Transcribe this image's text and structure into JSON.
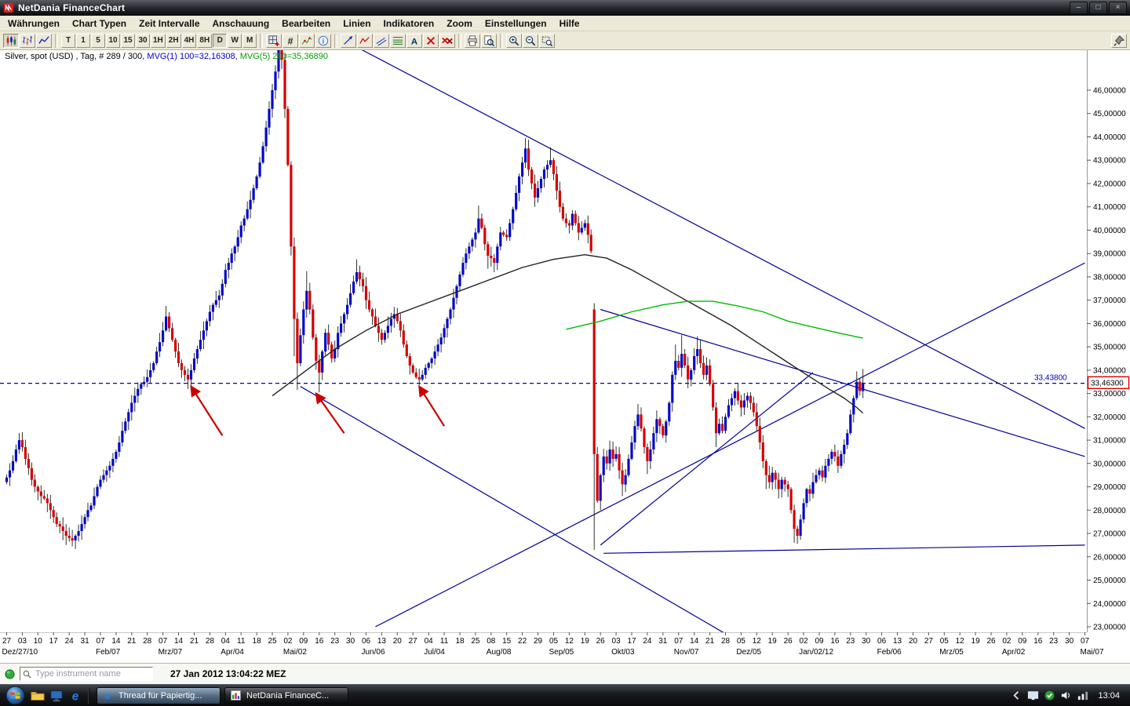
{
  "window": {
    "title": "NetDania FinanceChart",
    "buttons": [
      {
        "name": "minimize-button",
        "glyph": "–"
      },
      {
        "name": "maximize-button",
        "glyph": "□"
      },
      {
        "name": "close-button",
        "glyph": "×"
      }
    ]
  },
  "menu": {
    "items": [
      "Währungen",
      "Chart Typen",
      "Zeit Intervalle",
      "Anschauung",
      "Bearbeiten",
      "Linien",
      "Indikatoren",
      "Zoom",
      "Einstellungen",
      "Hilfe"
    ]
  },
  "toolbar": {
    "items": [
      {
        "type": "icon",
        "name": "candlestick-chart-icon",
        "active": true
      },
      {
        "type": "icon",
        "name": "ohlc-chart-icon"
      },
      {
        "type": "icon",
        "name": "line-chart-icon"
      },
      {
        "type": "sep"
      },
      {
        "type": "button",
        "label": "T"
      },
      {
        "type": "button",
        "label": "1"
      },
      {
        "type": "button",
        "label": "5"
      },
      {
        "type": "button",
        "label": "10"
      },
      {
        "type": "button",
        "label": "15"
      },
      {
        "type": "button",
        "label": "30"
      },
      {
        "type": "button",
        "label": "1H"
      },
      {
        "type": "button",
        "label": "2H"
      },
      {
        "type": "button",
        "label": "4H"
      },
      {
        "type": "button",
        "label": "8H"
      },
      {
        "type": "button",
        "label": "D",
        "active": true
      },
      {
        "type": "button",
        "label": "W"
      },
      {
        "type": "button",
        "label": "M"
      },
      {
        "type": "sep"
      },
      {
        "type": "icon",
        "name": "grid-icon"
      },
      {
        "type": "icon",
        "name": "hash-icon"
      },
      {
        "type": "icon",
        "name": "indicator-icon"
      },
      {
        "type": "icon",
        "name": "info-icon"
      },
      {
        "type": "sep"
      },
      {
        "type": "icon",
        "name": "trendline-icon"
      },
      {
        "type": "icon",
        "name": "polyline-icon"
      },
      {
        "type": "icon",
        "name": "channel-icon"
      },
      {
        "type": "icon",
        "name": "fibonacci-icon"
      },
      {
        "type": "icon",
        "name": "text-note-icon"
      },
      {
        "type": "icon",
        "name": "delete-line-icon"
      },
      {
        "type": "icon",
        "name": "delete-all-icon"
      },
      {
        "type": "sep"
      },
      {
        "type": "icon",
        "name": "print-icon"
      },
      {
        "type": "icon",
        "name": "print-preview-icon"
      },
      {
        "type": "sep"
      },
      {
        "type": "icon",
        "name": "zoom-in-icon"
      },
      {
        "type": "icon",
        "name": "zoom-out-icon"
      },
      {
        "type": "icon",
        "name": "zoom-selection-icon"
      }
    ],
    "pin": "pin-icon"
  },
  "status_line": {
    "instrument": "Silver, spot (USD) , Tag, # 289 / 300,",
    "mvg1": " MVG(1) 100=32,16308,",
    "mvg5": " MVG(5) 200=35,36890"
  },
  "chart_data": {
    "type": "candlestick",
    "title": "Silver, spot (USD)",
    "interval": "Tag",
    "bars_info": "# 289 / 300",
    "up_color": "#0008c8",
    "down_color": "#d80000",
    "trend_color": "#000099",
    "arrow_color": "#cc0000",
    "y_axis": {
      "min": 23,
      "max": 46,
      "tick_step": 1,
      "side": "right",
      "tick_labels": [
        "46,00000",
        "45,00000",
        "44,00000",
        "43,00000",
        "42,00000",
        "41,00000",
        "40,00000",
        "39,00000",
        "38,00000",
        "37,00000",
        "36,00000",
        "35,00000",
        "34,00000",
        "33,00000",
        "32,00000",
        "31,00000",
        "30,00000",
        "29,00000",
        "28,00000",
        "27,00000",
        "26,00000",
        "25,00000",
        "24,00000",
        "23,00000"
      ]
    },
    "x_ticks": [
      [
        "27",
        "Dez/27/10"
      ],
      [
        "03",
        ""
      ],
      [
        "10",
        ""
      ],
      [
        "17",
        ""
      ],
      [
        "24",
        ""
      ],
      [
        "31",
        ""
      ],
      [
        "07",
        "Feb/07"
      ],
      [
        "14",
        ""
      ],
      [
        "21",
        ""
      ],
      [
        "28",
        ""
      ],
      [
        "07",
        "Mrz/07"
      ],
      [
        "14",
        ""
      ],
      [
        "21",
        ""
      ],
      [
        "28",
        ""
      ],
      [
        "04",
        "Apr/04"
      ],
      [
        "11",
        ""
      ],
      [
        "18",
        ""
      ],
      [
        "25",
        ""
      ],
      [
        "02",
        "Mai/02"
      ],
      [
        "09",
        ""
      ],
      [
        "16",
        ""
      ],
      [
        "23",
        ""
      ],
      [
        "30",
        ""
      ],
      [
        "06",
        "Jun/06"
      ],
      [
        "13",
        ""
      ],
      [
        "20",
        ""
      ],
      [
        "27",
        ""
      ],
      [
        "04",
        "Jul/04"
      ],
      [
        "11",
        ""
      ],
      [
        "18",
        ""
      ],
      [
        "25",
        ""
      ],
      [
        "08",
        "Aug/08"
      ],
      [
        "15",
        ""
      ],
      [
        "22",
        ""
      ],
      [
        "29",
        ""
      ],
      [
        "05",
        "Sep/05"
      ],
      [
        "12",
        ""
      ],
      [
        "19",
        ""
      ],
      [
        "26",
        ""
      ],
      [
        "03",
        "Okt/03"
      ],
      [
        "17",
        ""
      ],
      [
        "24",
        ""
      ],
      [
        "31",
        ""
      ],
      [
        "07",
        "Nov/07"
      ],
      [
        "14",
        ""
      ],
      [
        "21",
        ""
      ],
      [
        "28",
        ""
      ],
      [
        "05",
        "Dez/05"
      ],
      [
        "12",
        ""
      ],
      [
        "19",
        ""
      ],
      [
        "26",
        ""
      ],
      [
        "02",
        "Jan/02/12"
      ],
      [
        "09",
        ""
      ],
      [
        "16",
        ""
      ],
      [
        "23",
        ""
      ],
      [
        "30",
        ""
      ],
      [
        "06",
        "Feb/06"
      ],
      [
        "13",
        ""
      ],
      [
        "20",
        ""
      ],
      [
        "27",
        ""
      ],
      [
        "05",
        "Mrz/05"
      ],
      [
        "12",
        ""
      ],
      [
        "19",
        ""
      ],
      [
        "26",
        ""
      ],
      [
        "02",
        "Apr/02"
      ],
      [
        "09",
        ""
      ],
      [
        "16",
        ""
      ],
      [
        "23",
        ""
      ],
      [
        "30",
        ""
      ],
      [
        "07",
        "Mai/07"
      ]
    ],
    "days_total": 345,
    "first_open": 29.2,
    "closes": [
      29.4,
      29.7,
      30.1,
      30.6,
      31.0,
      30.7,
      30.2,
      29.8,
      29.3,
      29.0,
      28.8,
      28.6,
      28.5,
      28.3,
      28.0,
      27.7,
      27.4,
      27.3,
      27.1,
      26.9,
      26.8,
      26.7,
      26.9,
      27.1,
      27.4,
      27.7,
      28.0,
      28.2,
      28.6,
      29.0,
      29.3,
      29.5,
      29.7,
      29.9,
      30.2,
      30.5,
      30.9,
      31.4,
      31.8,
      32.2,
      32.6,
      32.9,
      33.2,
      33.4,
      33.5,
      33.7,
      34.0,
      34.3,
      34.8,
      35.2,
      35.7,
      36.3,
      35.8,
      35.3,
      34.8,
      34.3,
      34.0,
      33.8,
      33.6,
      34.0,
      34.5,
      34.9,
      35.3,
      35.7,
      36.1,
      36.5,
      36.8,
      37.0,
      37.2,
      37.7,
      38.3,
      38.6,
      39.0,
      39.3,
      39.7,
      40.2,
      40.5,
      40.9,
      41.3,
      41.8,
      42.3,
      42.9,
      43.6,
      44.4,
      45.2,
      46.0,
      46.8,
      48.2,
      47.3,
      45.2,
      42.8,
      39.3,
      36.2,
      34.3,
      35.5,
      36.6,
      37.4,
      36.6,
      35.4,
      34.4,
      33.9,
      34.8,
      35.6,
      35.1,
      34.5,
      34.9,
      35.6,
      36.0,
      36.4,
      36.8,
      37.3,
      37.8,
      38.2,
      37.9,
      37.6,
      37.0,
      36.6,
      36.3,
      35.9,
      35.6,
      35.3,
      35.6,
      35.9,
      36.2,
      36.4,
      36.1,
      35.7,
      35.1,
      34.6,
      34.2,
      33.9,
      33.7,
      33.6,
      33.8,
      34.1,
      34.3,
      34.5,
      34.8,
      35.1,
      35.4,
      35.8,
      36.2,
      36.6,
      37.1,
      37.6,
      38.1,
      38.6,
      39.0,
      39.3,
      39.6,
      39.9,
      40.5,
      40.1,
      39.4,
      38.9,
      38.8,
      38.6,
      39.3,
      39.9,
      39.8,
      39.7,
      40.3,
      40.9,
      41.6,
      42.3,
      42.9,
      43.5,
      42.6,
      42.0,
      41.4,
      41.8,
      42.2,
      42.6,
      42.8,
      43.0,
      42.4,
      41.7,
      41.0,
      40.5,
      40.3,
      40.2,
      40.7,
      40.3,
      39.9,
      40.1,
      40.3,
      39.8,
      39.1,
      30.4,
      28.4,
      29.5,
      30.3,
      30.0,
      30.6,
      30.2,
      30.4,
      29.7,
      29.1,
      29.5,
      30.2,
      30.9,
      31.6,
      32.1,
      31.5,
      30.7,
      30.1,
      30.6,
      31.3,
      31.9,
      31.6,
      31.2,
      31.8,
      32.6,
      33.8,
      34.4,
      34.1,
      34.7,
      34.2,
      33.6,
      34.0,
      34.6,
      34.9,
      34.3,
      33.8,
      34.2,
      33.4,
      32.4,
      31.3,
      31.7,
      31.4,
      32.0,
      32.5,
      32.8,
      33.1,
      32.7,
      32.4,
      32.7,
      32.9,
      32.6,
      32.2,
      31.6,
      30.9,
      30.1,
      29.5,
      29.2,
      29.6,
      29.3,
      28.9,
      29.3,
      29.1,
      28.9,
      28.0,
      27.2,
      26.9,
      27.6,
      28.3,
      28.9,
      28.7,
      29.2,
      29.5,
      29.7,
      29.4,
      29.9,
      30.2,
      30.5,
      30.3,
      29.9,
      30.4,
      30.8,
      31.3,
      32.1,
      32.8,
      33.5,
      33.1,
      33.46
    ],
    "overrides": {
      "4": {
        "high": 31.3
      },
      "21": {
        "low": 26.45
      },
      "51": {
        "high": 36.75
      },
      "58": {
        "low": 33.2
      },
      "87": {
        "high": 49.3
      },
      "88": {
        "high": 48.9
      },
      "92": {
        "low": 34.6
      },
      "93": {
        "low": 33.15
      },
      "96": {
        "high": 38.25
      },
      "100": {
        "low": 33.05
      },
      "112": {
        "high": 38.75
      },
      "132": {
        "low": 33.35
      },
      "151": {
        "high": 41.05
      },
      "154": {
        "low": 38.35
      },
      "166": {
        "high": 43.95
      },
      "174": {
        "high": 43.55
      },
      "188": {
        "open": 36.6,
        "low": 26.3
      },
      "197": {
        "low": 28.6
      },
      "202": {
        "high": 32.55
      },
      "205": {
        "low": 29.55
      },
      "214": {
        "high": 35.1
      },
      "216": {
        "high": 35.5
      },
      "221": {
        "high": 35.45
      },
      "227": {
        "low": 30.7
      },
      "243": {
        "low": 28.9
      },
      "247": {
        "low": 28.5
      },
      "252": {
        "low": 26.6
      },
      "253": {
        "low": 26.55
      },
      "272": {
        "high": 33.95
      },
      "274": {
        "high": 34.05,
        "low": 32.8
      }
    },
    "ma100": {
      "label": "MVG(1) 100=32,16308",
      "value": "32,16308",
      "color": "#222222",
      "points": [
        [
          85,
          32.9
        ],
        [
          95,
          33.9
        ],
        [
          105,
          34.9
        ],
        [
          115,
          35.7
        ],
        [
          125,
          36.4
        ],
        [
          135,
          36.9
        ],
        [
          145,
          37.4
        ],
        [
          155,
          37.9
        ],
        [
          165,
          38.4
        ],
        [
          175,
          38.75
        ],
        [
          185,
          38.95
        ],
        [
          192,
          38.8
        ],
        [
          200,
          38.3
        ],
        [
          208,
          37.7
        ],
        [
          216,
          37.1
        ],
        [
          224,
          36.5
        ],
        [
          232,
          35.9
        ],
        [
          240,
          35.2
        ],
        [
          248,
          34.5
        ],
        [
          256,
          33.8
        ],
        [
          263,
          33.2
        ],
        [
          268,
          32.8
        ],
        [
          272,
          32.4
        ],
        [
          274,
          32.16
        ]
      ]
    },
    "ma200": {
      "label": "MVG(5) 200=35,36890",
      "value": "35,36890",
      "color": "#00bb00",
      "points": [
        [
          179,
          35.75
        ],
        [
          190,
          36.1
        ],
        [
          200,
          36.5
        ],
        [
          210,
          36.8
        ],
        [
          218,
          36.95
        ],
        [
          226,
          36.95
        ],
        [
          234,
          36.75
        ],
        [
          242,
          36.5
        ],
        [
          250,
          36.1
        ],
        [
          258,
          35.85
        ],
        [
          266,
          35.6
        ],
        [
          274,
          35.37
        ]
      ]
    },
    "trendlines": [
      {
        "p1": [
          87,
          49.6
        ],
        "p2": [
          345,
          31.5
        ]
      },
      {
        "p1": [
          190,
          36.6
        ],
        "p2": [
          345,
          30.3
        ]
      },
      {
        "p1": [
          118,
          23.0
        ],
        "p2": [
          345,
          38.6
        ]
      },
      {
        "p1": [
          94,
          33.3
        ],
        "p2": [
          230,
          22.7
        ]
      },
      {
        "p1": [
          191,
          26.15
        ],
        "p2": [
          345,
          26.5
        ]
      },
      {
        "p1": [
          190,
          26.5
        ],
        "p2": [
          258,
          33.9
        ]
      }
    ],
    "dashed_line": {
      "price": 33.438,
      "label": "33,43800",
      "color": "#0000bb"
    },
    "current_price": {
      "value": 33.463,
      "label": "33,46300",
      "box_border": "#dd0000"
    },
    "arrows": [
      {
        "tail": [
          69,
          31.2
        ],
        "tip": [
          59,
          33.3
        ]
      },
      {
        "tail": [
          108,
          31.3
        ],
        "tip": [
          99,
          33.0
        ]
      },
      {
        "tail": [
          140,
          31.6
        ],
        "tip": [
          132,
          33.3
        ]
      }
    ]
  },
  "bottom_bar": {
    "search_placeholder": "Type instrument name",
    "timestamp": "27 Jan 2012 13:04:22 MEZ"
  },
  "taskbar": {
    "quick_launch": [
      "folder-icon",
      "display-icon",
      "ie-icon"
    ],
    "buttons": [
      {
        "icon": "ie-icon",
        "label": "Thread für Papiertig...",
        "active": true
      },
      {
        "icon": "chart-app-icon",
        "label": "NetDania FinanceC...",
        "active": false
      }
    ],
    "tray_icons": [
      "hidden-icons-chevron",
      "display-tray-icon",
      "shield-tray-icon",
      "volume-icon",
      "network-icon"
    ],
    "clock": "13:04"
  }
}
